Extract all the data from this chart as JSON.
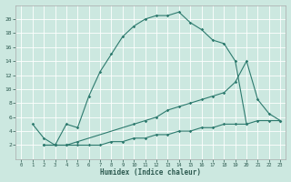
{
  "xlabel": "Humidex (Indice chaleur)",
  "background_color": "#cce8e0",
  "line_color": "#2d7a6e",
  "xlim": [
    -0.5,
    23.5
  ],
  "ylim": [
    0,
    22
  ],
  "xticks": [
    0,
    1,
    2,
    3,
    4,
    5,
    6,
    7,
    8,
    9,
    10,
    11,
    12,
    13,
    14,
    15,
    16,
    17,
    18,
    19,
    20,
    21,
    22,
    23
  ],
  "yticks": [
    2,
    4,
    6,
    8,
    10,
    12,
    14,
    16,
    18,
    20
  ],
  "curve1_x": [
    1,
    2,
    3,
    4,
    5,
    6,
    7,
    8,
    9,
    10,
    11,
    12,
    13,
    14,
    15,
    16,
    17,
    18,
    19,
    20
  ],
  "curve1_y": [
    5,
    3,
    2,
    5,
    4.5,
    9,
    12.5,
    15,
    17.5,
    19,
    20,
    20.5,
    20.5,
    21,
    19.5,
    18.5,
    17,
    16.5,
    14,
    5
  ],
  "curve2_x": [
    2,
    3,
    4,
    5,
    10,
    11,
    12,
    13,
    14,
    15,
    16,
    17,
    18,
    19,
    20,
    21,
    22,
    23
  ],
  "curve2_y": [
    2,
    2,
    2,
    2.5,
    5,
    5.5,
    6,
    7,
    7.5,
    8,
    8.5,
    9,
    9.5,
    11,
    14,
    8.5,
    6.5,
    5.5
  ],
  "curve3_x": [
    2,
    3,
    4,
    5,
    6,
    7,
    8,
    9,
    10,
    11,
    12,
    13,
    14,
    15,
    16,
    17,
    18,
    19,
    20,
    21,
    22,
    23
  ],
  "curve3_y": [
    2,
    2,
    2,
    2,
    2,
    2,
    2.5,
    2.5,
    3,
    3,
    3.5,
    3.5,
    4,
    4,
    4.5,
    4.5,
    5,
    5,
    5,
    5.5,
    5.5,
    5.5
  ]
}
